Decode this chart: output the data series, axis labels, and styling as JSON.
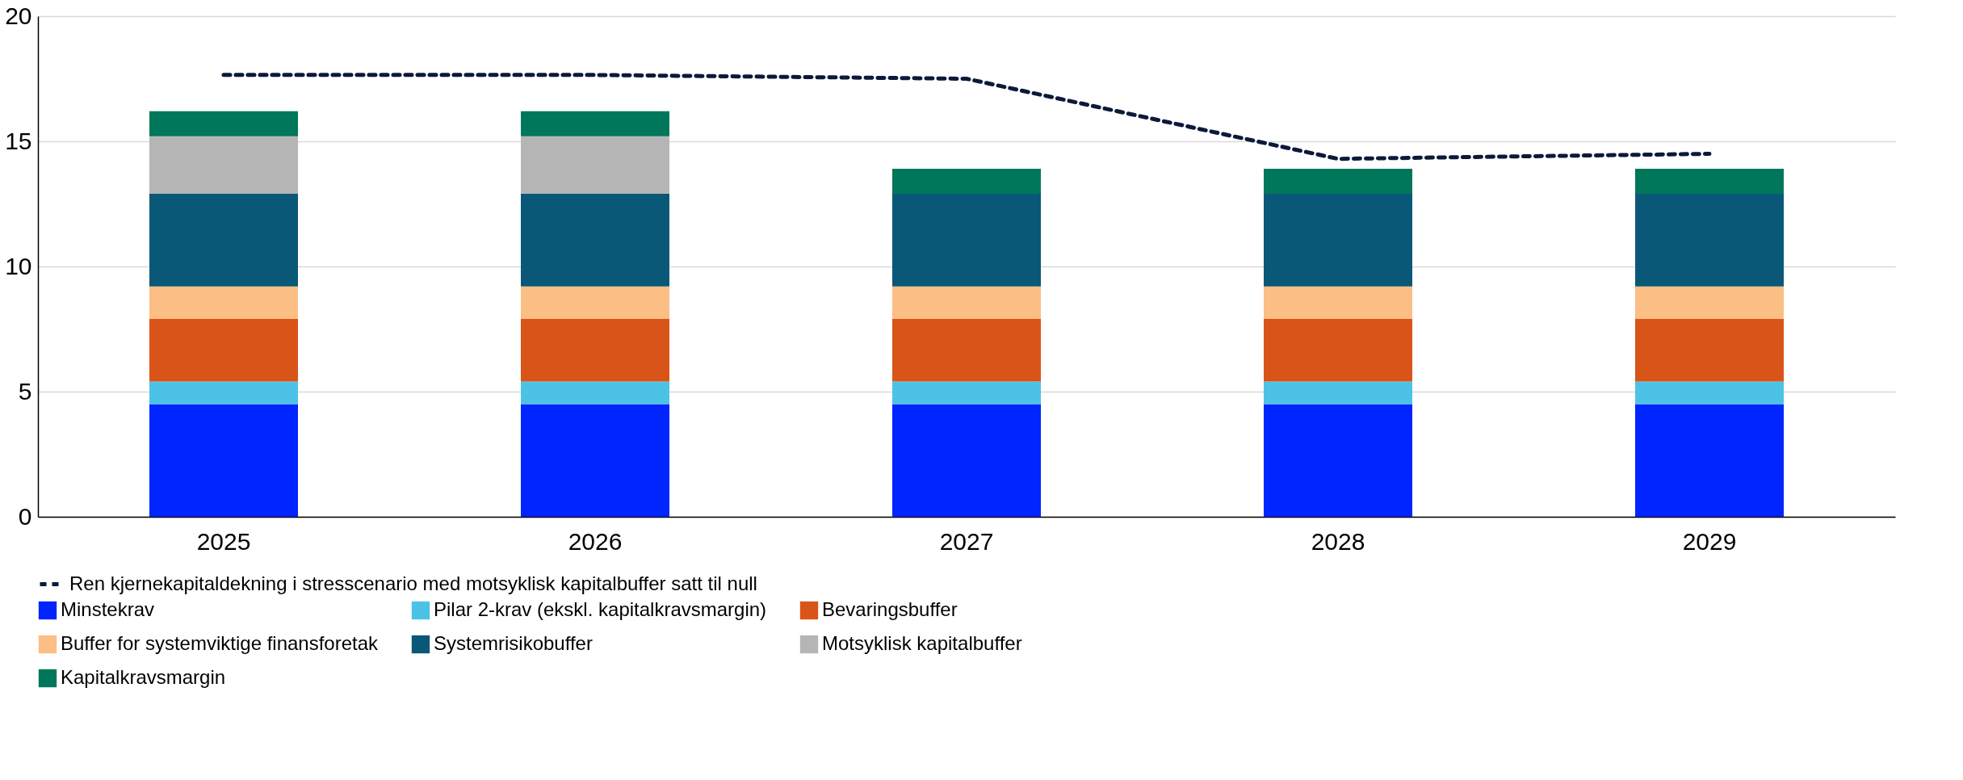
{
  "chart_data": {
    "type": "bar",
    "stacked": true,
    "categories": [
      "2025",
      "2026",
      "2027",
      "2028",
      "2029"
    ],
    "series": [
      {
        "name": "Minstekrav",
        "color": "#0025ff",
        "values": [
          4.5,
          4.5,
          4.5,
          4.5,
          4.5
        ]
      },
      {
        "name": "Pilar 2-krav (ekskl. kapitalkravsmargin)",
        "color": "#4cc3e6",
        "values": [
          0.9,
          0.9,
          0.9,
          0.9,
          0.9
        ]
      },
      {
        "name": "Bevaringsbuffer",
        "color": "#d95419",
        "values": [
          2.5,
          2.5,
          2.5,
          2.5,
          2.5
        ]
      },
      {
        "name": "Buffer for systemviktige finansforetak",
        "color": "#fbbe85",
        "values": [
          1.3,
          1.3,
          1.3,
          1.3,
          1.3
        ]
      },
      {
        "name": "Systemrisikobuffer",
        "color": "#0a5878",
        "values": [
          3.7,
          3.7,
          3.7,
          3.7,
          3.7
        ]
      },
      {
        "name": "Motsyklisk kapitalbuffer",
        "color": "#b5b5b5",
        "values": [
          2.3,
          2.3,
          null,
          null,
          null
        ]
      },
      {
        "name": "Kapitalkravsmargin",
        "color": "#00775a",
        "values": [
          1.0,
          1.0,
          1.0,
          1.0,
          1.0
        ]
      },
      {
        "name": "Ren kjernekapitaldekning i stresscenario med motsyklisk kapitalbuffer satt til null",
        "type": "line",
        "line_style": "dashed",
        "color": "#0b1a3a",
        "values": [
          17.65,
          17.65,
          17.5,
          14.3,
          14.5
        ]
      }
    ],
    "ylim": [
      0,
      20
    ],
    "yticks": [
      0,
      5,
      10,
      15,
      20
    ],
    "grid": "y",
    "legend": "bottom",
    "marker": "none"
  }
}
